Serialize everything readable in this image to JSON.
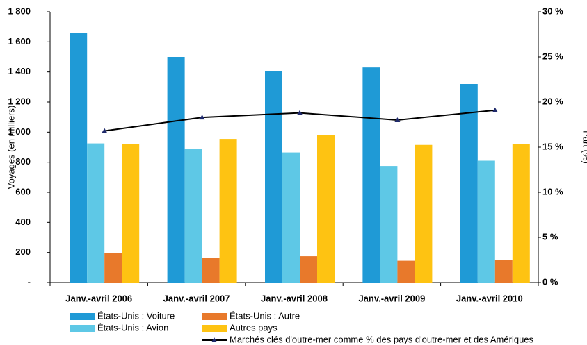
{
  "chart_data": {
    "type": "bar",
    "categories": [
      "Janv.-avril 2006",
      "Janv.-avril 2007",
      "Janv.-avril 2008",
      "Janv.-avril 2009",
      "Janv.-avril 2010"
    ],
    "series": [
      {
        "name": "États-Unis : Voiture",
        "color": "#1f9ad6",
        "values": [
          1660,
          1500,
          1405,
          1430,
          1320
        ]
      },
      {
        "name": "États-Unis : Avion",
        "color": "#5ec8e6",
        "values": [
          925,
          890,
          865,
          775,
          810
        ]
      },
      {
        "name": "États-Unis : Autre",
        "color": "#e8792b",
        "values": [
          195,
          165,
          175,
          145,
          150
        ]
      },
      {
        "name": "Autres pays",
        "color": "#fec312",
        "values": [
          920,
          955,
          980,
          915,
          920
        ]
      },
      {
        "name": "Marchés clés d'outre-mer comme % des pays d'outre-mer et des Amériques",
        "color": "#000000",
        "marker_color": "#1f2a6b",
        "type": "line",
        "axis": "y2",
        "values": [
          16.8,
          18.3,
          18.8,
          18.0,
          19.1
        ]
      }
    ],
    "ylabel": "Voyages (en milliers)",
    "y2label": "Part (%)",
    "ylim": [
      0,
      1800
    ],
    "yticks": [
      {
        "value": 0,
        "label": "-"
      },
      200,
      400,
      600,
      800,
      {
        "value": 1000,
        "label": "1 000"
      },
      {
        "value": 1200,
        "label": "1 200"
      },
      {
        "value": 1400,
        "label": "1 400"
      },
      {
        "value": 1600,
        "label": "1 600"
      },
      {
        "value": 1800,
        "label": "1 800"
      }
    ],
    "y2lim": [
      0,
      30
    ],
    "y2ticks": [
      {
        "value": 0,
        "label": "0 %"
      },
      {
        "value": 5,
        "label": "5 %"
      },
      {
        "value": 10,
        "label": "10 %"
      },
      {
        "value": 15,
        "label": "15 %"
      },
      {
        "value": 20,
        "label": "20 %"
      },
      {
        "value": 25,
        "label": "25 %"
      },
      {
        "value": 30,
        "label": "30 %"
      }
    ]
  }
}
